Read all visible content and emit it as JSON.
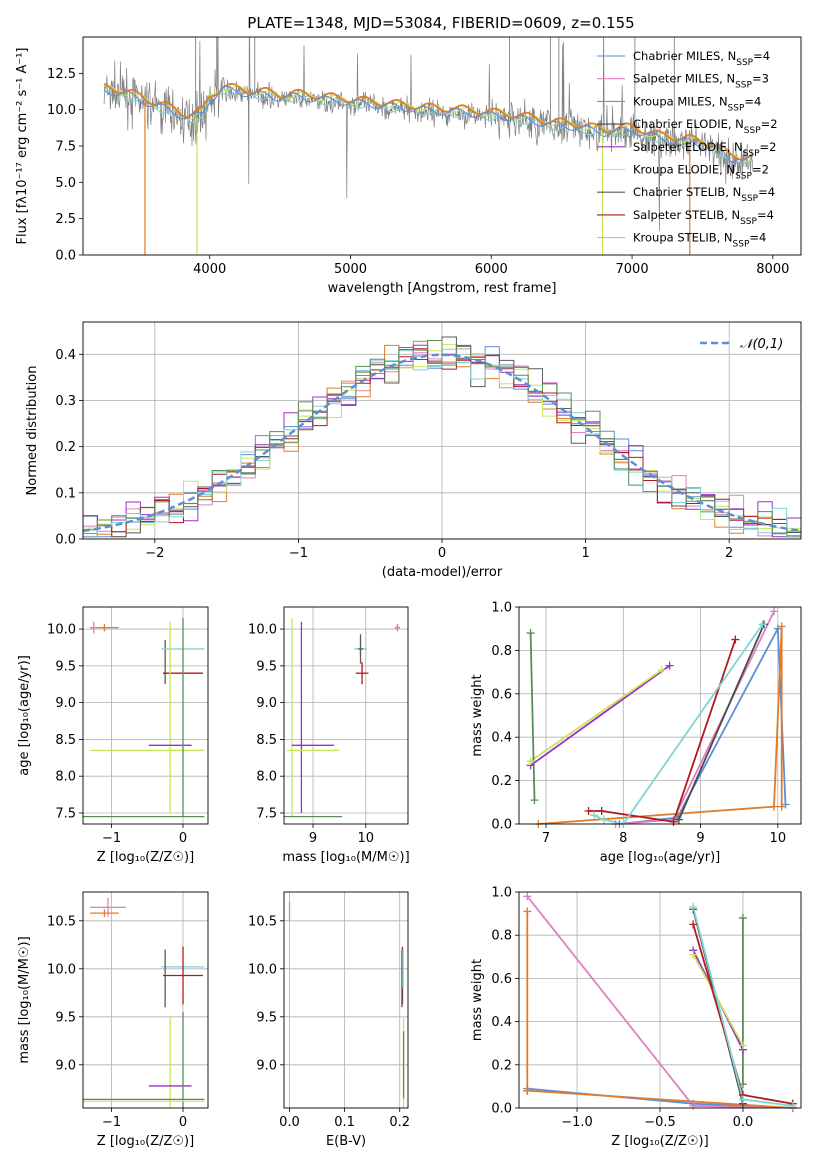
{
  "figure": {
    "title": "PLATE=1348, MJD=53084, FIBERID=0609, z=0.155"
  },
  "colors": {
    "Chabrier MILES": "#5b8fd6",
    "Salpeter MILES": "#e07fc0",
    "Kroupa MILES": "#e07b2a",
    "Chabrier ELODIE": "#4a4a4a",
    "Salpeter ELODIE": "#9a32c8",
    "Kroupa ELODIE": "#c8e65a",
    "Chabrier STELIB": "#5a5a5a",
    "Salpeter STELIB": "#b0191e",
    "Kroupa STELIB": "#7fd4d4",
    "data": "#808080",
    "normal": "#5b8fd6",
    "green": "#5a8c5a"
  },
  "chart_data": [
    {
      "id": "spectrum",
      "type": "line",
      "title": "PLATE=1348, MJD=53084, FIBERID=0609, z=0.155",
      "xlabel": "wavelength [Angstrom, rest frame]",
      "ylabel": "Flux [fλ10⁻¹⁷ erg cm⁻² s⁻¹ A⁻¹]",
      "xlim": [
        3100,
        8200
      ],
      "ylim": [
        0,
        15
      ],
      "xticks": [
        4000,
        5000,
        6000,
        7000,
        8000
      ],
      "yticks": [
        0.0,
        2.5,
        5.0,
        7.5,
        10.0,
        12.5
      ],
      "legend_position": "top-right",
      "series": [
        {
          "name": "Chabrier MILES, N_SSP=4"
        },
        {
          "name": "Salpeter MILES, N_SSP=3"
        },
        {
          "name": "Kroupa MILES, N_SSP=4"
        },
        {
          "name": "Chabrier ELODIE, N_SSP=2"
        },
        {
          "name": "Salpeter ELODIE, N_SSP=2"
        },
        {
          "name": "Kroupa ELODIE, N_SSP=2"
        },
        {
          "name": "Chabrier STELIB, N_SSP=4"
        },
        {
          "name": "Salpeter STELIB, N_SSP=4"
        },
        {
          "name": "Kroupa STELIB, N_SSP=4"
        }
      ],
      "continuum": {
        "x": [
          3250,
          3400,
          3550,
          3700,
          3850,
          3950,
          4000,
          4100,
          4200,
          4300,
          4400,
          4500,
          4600,
          4800,
          5000,
          5200,
          5400,
          5600,
          5800,
          6000,
          6200,
          6400,
          6600,
          6800,
          7000,
          7200,
          7400,
          7600,
          7700,
          7850
        ],
        "y": [
          11.2,
          11.0,
          10.4,
          9.9,
          9.3,
          9.6,
          10.6,
          11.3,
          11.1,
          11.0,
          10.9,
          10.7,
          10.8,
          10.6,
          10.4,
          10.2,
          10.0,
          9.8,
          9.7,
          9.5,
          9.3,
          8.9,
          8.7,
          8.3,
          8.5,
          7.9,
          7.7,
          7.2,
          6.5,
          6.4
        ]
      }
    },
    {
      "id": "residuals",
      "type": "line",
      "xlabel": "(data-model)/error",
      "ylabel": "Normed distribution",
      "xlim": [
        -2.5,
        2.5
      ],
      "ylim": [
        0,
        0.47
      ],
      "xticks": [
        -2,
        -1,
        0,
        1,
        2
      ],
      "yticks": [
        0.0,
        0.1,
        0.2,
        0.3,
        0.4
      ],
      "legend": [
        "𝒩(0,1)"
      ],
      "legend_position": "top-right"
    },
    {
      "id": "age-vs-Z",
      "type": "scatter",
      "xlabel": "Z [log₁₀(Z/Z☉)]",
      "ylabel": "age  [log₁₀(age/yr)]",
      "xlim": [
        -1.4,
        0.35
      ],
      "ylim": [
        7.35,
        10.3
      ],
      "xticks": [
        -1,
        0
      ],
      "yticks": [
        7.5,
        8.0,
        8.5,
        9.0,
        9.5,
        10.0
      ],
      "errorbars": [
        {
          "color": "#e07b2a",
          "x": -1.1,
          "xerr": 0.2,
          "y": 10.02,
          "yerr": 0.05
        },
        {
          "color": "#e07fc0",
          "x": -1.25,
          "xerr": 0.05,
          "y": 10.02,
          "yerr": 0.08
        },
        {
          "color": "#5a5a5a",
          "x": -0.25,
          "xerr": 0.0,
          "y": 9.55,
          "yerr": 0.3
        },
        {
          "color": "#7fd4d4",
          "x": 0.0,
          "xerr": 0.3,
          "y": 9.73,
          "yerr": 0.0
        },
        {
          "color": "#b0191e",
          "x": 0.0,
          "xerr": 0.28,
          "y": 9.4,
          "yerr": 0.0
        },
        {
          "color": "#c8e65a",
          "x": -0.18,
          "xerr": 0.0,
          "y": 8.8,
          "yerr": 1.3
        },
        {
          "color": "#9a32c8",
          "x": -0.18,
          "xerr": 0.3,
          "y": 8.42,
          "yerr": 0.0
        },
        {
          "color": "#c8e65a",
          "x": -0.5,
          "xerr": 0.8,
          "y": 8.35,
          "yerr": 0.0
        },
        {
          "color": "#5a8c5a",
          "x": 0.0,
          "xerr": 0.0,
          "y": 8.8,
          "yerr": 1.35
        },
        {
          "color": "#5a8c5a",
          "x": -0.55,
          "xerr": 0.85,
          "y": 7.45,
          "yerr": 0.0
        }
      ]
    },
    {
      "id": "age-vs-mass",
      "type": "scatter",
      "xlabel": "mass [log₁₀(M/M☉)]",
      "ylabel": "",
      "xlim": [
        8.45,
        10.8
      ],
      "ylim": [
        7.35,
        10.3
      ],
      "xticks": [
        9,
        10
      ],
      "yticks": [
        7.5,
        8.0,
        8.5,
        9.0,
        9.5,
        10.0
      ],
      "errorbars": [
        {
          "color": "#e07b2a",
          "x": 10.6,
          "xerr": 0.05,
          "y": 10.02,
          "yerr": 0.05
        },
        {
          "color": "#e07fc0",
          "x": 10.6,
          "xerr": 0.03,
          "y": 10.02,
          "yerr": 0.04
        },
        {
          "color": "#7fd4d4",
          "x": 9.9,
          "xerr": 0.12,
          "y": 9.73,
          "yerr": 0.1
        },
        {
          "color": "#5a5a5a",
          "x": 9.9,
          "xerr": 0.05,
          "y": 9.73,
          "yerr": 0.2
        },
        {
          "color": "#b0191e",
          "x": 9.93,
          "xerr": 0.12,
          "y": 9.4,
          "yerr": 0.15
        },
        {
          "color": "#c8e65a",
          "x": 8.6,
          "xerr": 0.0,
          "y": 8.8,
          "yerr": 1.35
        },
        {
          "color": "#9a32c8",
          "x": 8.78,
          "xerr": 0.0,
          "y": 8.8,
          "yerr": 1.3
        },
        {
          "color": "#9a32c8",
          "x": 9.0,
          "xerr": 0.4,
          "y": 8.42,
          "yerr": 0.0
        },
        {
          "color": "#c8e65a",
          "x": 9.0,
          "xerr": 0.5,
          "y": 8.35,
          "yerr": 0.0
        },
        {
          "color": "#5a8c5a",
          "x": 9.0,
          "xerr": 0.55,
          "y": 7.45,
          "yerr": 0.0
        }
      ]
    },
    {
      "id": "weight-vs-age",
      "type": "line",
      "xlabel": "age  [log₁₀(age/yr)]",
      "ylabel": "mass weight",
      "xlim": [
        6.65,
        10.3
      ],
      "ylim": [
        0,
        1.0
      ],
      "xticks": [
        7,
        8,
        9,
        10
      ],
      "yticks": [
        0.0,
        0.2,
        0.4,
        0.6,
        0.8,
        1.0
      ],
      "series": [
        {
          "color": "#5b8fd6",
          "x": [
            7.95,
            8.7,
            10.0,
            10.1
          ],
          "y": [
            0.0,
            0.03,
            0.9,
            0.09
          ]
        },
        {
          "color": "#e07fc0",
          "x": [
            7.9,
            8.65,
            9.95
          ],
          "y": [
            0.0,
            0.02,
            0.98
          ]
        },
        {
          "color": "#e07b2a",
          "x": [
            6.9,
            9.95,
            10.05,
            10.05
          ],
          "y": [
            0.0,
            0.08,
            0.91,
            0.08
          ]
        },
        {
          "color": "#4a4a4a",
          "x": [
            8.72,
            9.82
          ],
          "y": [
            0.02,
            0.92
          ]
        },
        {
          "color": "#9a32c8",
          "x": [
            6.8,
            8.6
          ],
          "y": [
            0.27,
            0.73
          ]
        },
        {
          "color": "#c8e65a",
          "x": [
            6.8,
            8.5
          ],
          "y": [
            0.29,
            0.71
          ]
        },
        {
          "color": "#b0191e",
          "x": [
            7.55,
            7.72,
            8.65,
            9.45
          ],
          "y": [
            0.06,
            0.06,
            0.01,
            0.85
          ]
        },
        {
          "color": "#7fd4d4",
          "x": [
            7.62,
            7.75,
            8.0,
            9.8
          ],
          "y": [
            0.04,
            0.02,
            0.0,
            0.92
          ]
        },
        {
          "color": "#5a8c5a",
          "x": [
            6.8,
            6.85
          ],
          "y": [
            0.88,
            0.11
          ]
        }
      ]
    },
    {
      "id": "mass-vs-Z",
      "type": "scatter",
      "xlabel": "Z [log₁₀(Z/Z☉)]",
      "ylabel": "mass [log₁₀(M/M☉)]",
      "xlim": [
        -1.4,
        0.35
      ],
      "ylim": [
        8.55,
        10.8
      ],
      "xticks": [
        -1,
        0
      ],
      "yticks": [
        9.0,
        9.5,
        10.0,
        10.5
      ],
      "errorbars": [
        {
          "color": "#e07fc0",
          "x": -1.05,
          "xerr": 0.25,
          "y": 10.64,
          "yerr": 0.1
        },
        {
          "color": "#e07b2a",
          "x": -1.1,
          "xerr": 0.2,
          "y": 10.58,
          "yerr": 0.04
        },
        {
          "color": "#7fd4d4",
          "x": 0.0,
          "xerr": 0.3,
          "y": 10.02,
          "yerr": 0.0
        },
        {
          "color": "#5a5a5a",
          "x": -0.25,
          "xerr": 0.0,
          "y": 9.9,
          "yerr": 0.3
        },
        {
          "color": "#b0191e",
          "x": 0.0,
          "xerr": 0.28,
          "y": 9.93,
          "yerr": 0.3
        },
        {
          "color": "#c8e65a",
          "x": -0.18,
          "xerr": 0.0,
          "y": 9.0,
          "yerr": 0.5
        },
        {
          "color": "#9a32c8",
          "x": -0.18,
          "xerr": 0.3,
          "y": 8.78,
          "yerr": 0.0
        },
        {
          "color": "#5a8c5a",
          "x": 0.0,
          "xerr": 0.0,
          "y": 9.0,
          "yerr": 0.55
        },
        {
          "color": "#5a8c5a",
          "x": -0.55,
          "xerr": 0.85,
          "y": 8.64,
          "yerr": 0.0
        },
        {
          "color": "#c8e65a",
          "x": -0.55,
          "xerr": 0.85,
          "y": 8.62,
          "yerr": 0.0
        }
      ]
    },
    {
      "id": "mass-vs-EBV",
      "type": "scatter",
      "xlabel": "E(B-V)",
      "ylabel": "",
      "xlim": [
        -0.01,
        0.215
      ],
      "ylim": [
        8.55,
        10.8
      ],
      "xticks": [
        0.0,
        0.1,
        0.2
      ],
      "yticks": [
        9.0,
        9.5,
        10.0,
        10.5
      ],
      "errorbars": [
        {
          "color": "#e07fc0",
          "x": 0.0,
          "xerr": 0.0,
          "y": 10.6,
          "yerr": 0.1
        },
        {
          "color": "#b0191e",
          "x": 0.205,
          "xerr": 0.0,
          "y": 9.93,
          "yerr": 0.3
        },
        {
          "color": "#5a5a5a",
          "x": 0.204,
          "xerr": 0.0,
          "y": 9.9,
          "yerr": 0.3
        },
        {
          "color": "#7fd4d4",
          "x": 0.206,
          "xerr": 0.0,
          "y": 10.0,
          "yerr": 0.2
        },
        {
          "color": "#c8e65a",
          "x": 0.207,
          "xerr": 0.0,
          "y": 9.0,
          "yerr": 0.5
        },
        {
          "color": "#5a8c5a",
          "x": 0.207,
          "xerr": 0.0,
          "y": 9.0,
          "yerr": 0.35
        }
      ]
    },
    {
      "id": "weight-vs-Z",
      "type": "line",
      "xlabel": "Z [log₁₀(Z/Z☉)]",
      "ylabel": "mass weight",
      "xlim": [
        -1.35,
        0.35
      ],
      "ylim": [
        0,
        1.0
      ],
      "xticks": [
        -1.0,
        -0.5,
        0.0
      ],
      "yticks": [
        0.0,
        0.2,
        0.4,
        0.6,
        0.8,
        1.0
      ],
      "series": [
        {
          "color": "#5b8fd6",
          "x": [
            -1.3,
            -0.3,
            0.3
          ],
          "y": [
            0.09,
            0.02,
            0.0
          ]
        },
        {
          "color": "#e07fc0",
          "x": [
            -1.3,
            -0.3,
            0.3
          ],
          "y": [
            0.98,
            0.01,
            0.0
          ]
        },
        {
          "color": "#e07b2a",
          "x": [
            -1.3,
            -1.3,
            -1.3,
            0.3
          ],
          "y": [
            0.91,
            0.08,
            0.08,
            0.0
          ]
        },
        {
          "color": "#4a4a4a",
          "x": [
            -0.3,
            0.0
          ],
          "y": [
            0.92,
            0.02
          ]
        },
        {
          "color": "#9a32c8",
          "x": [
            -0.3,
            0.0
          ],
          "y": [
            0.73,
            0.27
          ]
        },
        {
          "color": "#c8e65a",
          "x": [
            -0.3,
            0.0
          ],
          "y": [
            0.71,
            0.29
          ]
        },
        {
          "color": "#b0191e",
          "x": [
            -0.3,
            0.0,
            0.3
          ],
          "y": [
            0.85,
            0.06,
            0.02
          ]
        },
        {
          "color": "#7fd4d4",
          "x": [
            -0.3,
            0.0,
            0.3
          ],
          "y": [
            0.93,
            0.04,
            0.01
          ]
        },
        {
          "color": "#5a8c5a",
          "x": [
            0.0,
            0.0
          ],
          "y": [
            0.88,
            0.11
          ]
        }
      ]
    }
  ]
}
